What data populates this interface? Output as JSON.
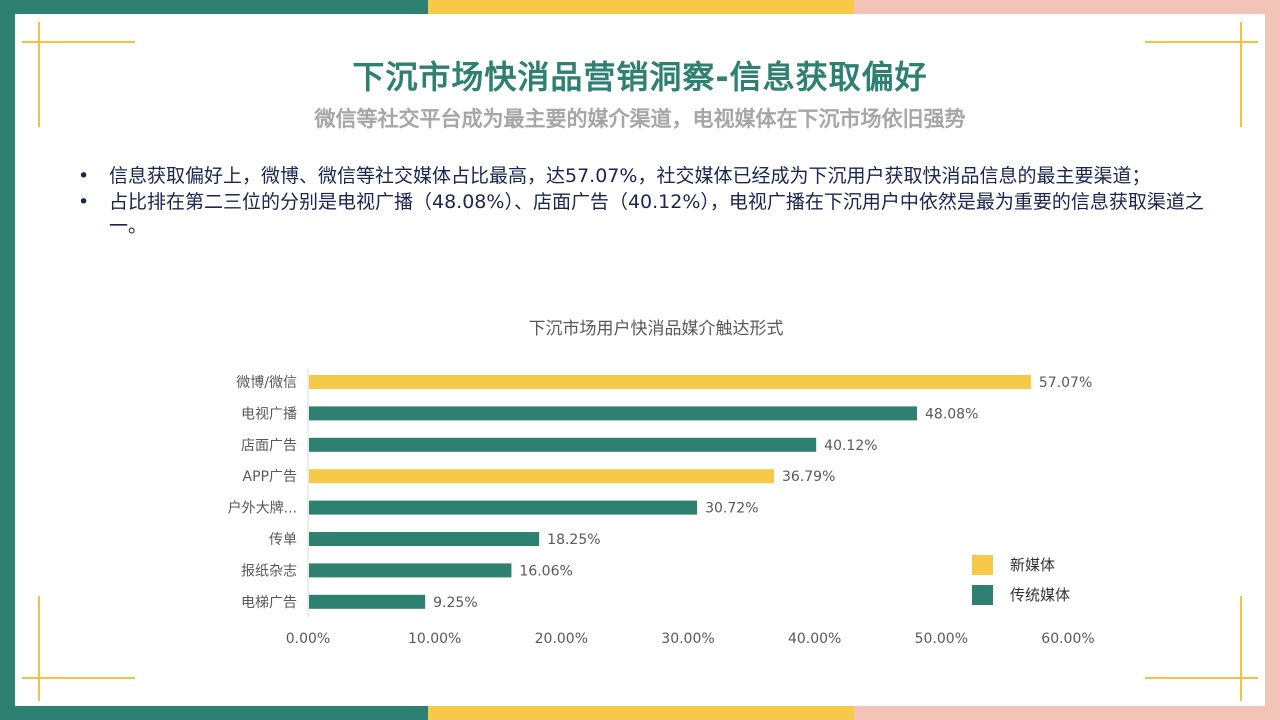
{
  "page": {
    "title": "下沉市场快消品营销洞察-信息获取偏好",
    "subtitle": "微信等社交平台成为最主要的媒介渠道，电视媒体在下沉市场依旧强势",
    "bullets": [
      "信息获取偏好上，微博、微信等社交媒体占比最高，达57.07%，社交媒体已经成为下沉用户获取快消品信息的最主要渠道；",
      "占比排在第二三位的分别是电视广播（48.08%）、店面广告（40.12%），电视广播在下沉用户中依然是最为重要的信息获取渠道之一。"
    ],
    "bullet_marker": "•",
    "colors": {
      "green": "#2e8070",
      "yellow": "#f7c948",
      "pink": "#f2c4b8",
      "title": "#2e8070",
      "subtitle": "#a6a6a6",
      "text": "#1a2550"
    }
  },
  "chart_data": {
    "type": "bar",
    "orientation": "horizontal",
    "title": "下沉市场用户快消品媒介触达形式",
    "categories": [
      "微博/微信",
      "电视广播",
      "店面广告",
      "APP广告",
      "户外大牌...",
      "传单",
      "报纸杂志",
      "电梯广告"
    ],
    "values": [
      57.07,
      48.08,
      40.12,
      36.79,
      30.72,
      18.25,
      16.06,
      9.25
    ],
    "value_labels": [
      "57.07%",
      "48.08%",
      "40.12%",
      "36.79%",
      "30.72%",
      "18.25%",
      "16.06%",
      "9.25%"
    ],
    "groups": [
      "新媒体",
      "传统媒体",
      "传统媒体",
      "新媒体",
      "传统媒体",
      "传统媒体",
      "传统媒体",
      "传统媒体"
    ],
    "legend": [
      {
        "name": "新媒体",
        "color": "#f7c948"
      },
      {
        "name": "传统媒体",
        "color": "#2e8070"
      }
    ],
    "legend_position": "bottom-right",
    "xlim": [
      0,
      60
    ],
    "xticks": [
      "0.00%",
      "10.00%",
      "20.00%",
      "30.00%",
      "40.00%",
      "50.00%",
      "60.00%"
    ],
    "grid": false
  }
}
